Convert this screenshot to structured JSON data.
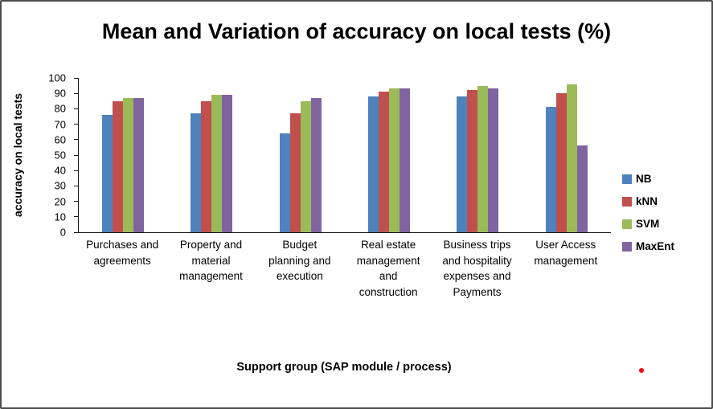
{
  "chart_data": {
    "type": "bar",
    "title": "Mean and Variation of accuracy on local tests (%)",
    "xlabel": "Support group (SAP module / process)",
    "ylabel": "accuracy on local tests",
    "ylim": [
      0,
      100
    ],
    "yticks": [
      0,
      10,
      20,
      30,
      40,
      50,
      60,
      70,
      80,
      90,
      100
    ],
    "gridlines": false,
    "legend_position": "right",
    "categories": [
      "Purchases and agreements",
      "Property and material management",
      "Budget planning and execution",
      "Real estate management and construction",
      "Business trips and hospitality expenses and Payments",
      "User Access management"
    ],
    "series": [
      {
        "name": "NB",
        "color": "#4F81BD",
        "values": [
          76,
          77,
          64,
          88,
          88,
          81
        ]
      },
      {
        "name": "kNN",
        "color": "#C0504D",
        "values": [
          85,
          85,
          77,
          91,
          92,
          90
        ]
      },
      {
        "name": "SVM",
        "color": "#9BBB59",
        "values": [
          87,
          89,
          85,
          93,
          95,
          96
        ]
      },
      {
        "name": "MaxEnt",
        "color": "#8064A2",
        "values": [
          87,
          89,
          87,
          93,
          93,
          56
        ]
      }
    ]
  },
  "annotations": {
    "red_dot_color": "#FF0000"
  }
}
